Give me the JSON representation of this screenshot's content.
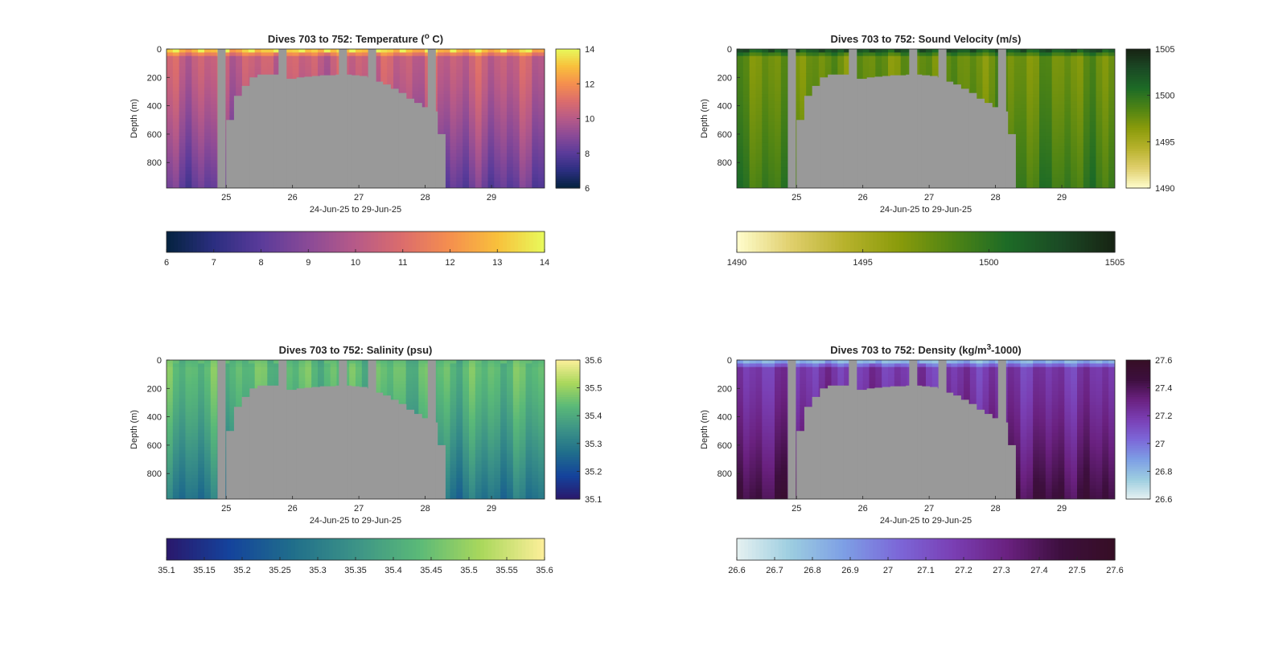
{
  "xlabel": "24-Jun-25 to 29-Jun-25",
  "ylabel": "Depth (m)",
  "x_ticks": [
    "25",
    "26",
    "27",
    "28",
    "29"
  ],
  "y_ticks": [
    "0",
    "200",
    "400",
    "600",
    "800"
  ],
  "chart_data": [
    {
      "type": "heatmap",
      "title": "Dives 703 to 752: Temperature (",
      "title_sup": "o",
      "title_tail": " C)",
      "xlabel": "24-Jun-25 to 29-Jun-25",
      "ylabel": "Depth (m)",
      "x_range": [
        24.1,
        29.8
      ],
      "y_range": [
        0,
        980
      ],
      "y_reversed": true,
      "clim": [
        6,
        14
      ],
      "colormap": "thermal",
      "colorbar_side_ticks": [
        "6",
        "8",
        "10",
        "12",
        "14"
      ],
      "colorbar_bottom_ticks": [
        "6",
        "7",
        "8",
        "9",
        "10",
        "11",
        "12",
        "13",
        "14"
      ],
      "surface_value": 13.5,
      "mid_value": 10.4,
      "deep_value": 8.2
    },
    {
      "type": "heatmap",
      "title": "Dives 703 to 752: Sound Velocity (m/s)",
      "title_sup": "",
      "title_tail": "",
      "xlabel": "24-Jun-25 to 29-Jun-25",
      "ylabel": "Depth (m)",
      "x_range": [
        24.1,
        29.8
      ],
      "y_range": [
        0,
        980
      ],
      "y_reversed": true,
      "clim": [
        1490,
        1505
      ],
      "colormap": "speed",
      "colorbar_side_ticks": [
        "1490",
        "1495",
        "1500",
        "1505"
      ],
      "colorbar_bottom_ticks": [
        "1490",
        "1495",
        "1500",
        "1505"
      ],
      "surface_value": 1502.5,
      "mid_value": 1497.5,
      "deep_value": 1499.5
    },
    {
      "type": "heatmap",
      "title": "Dives 703 to 752: Salinity (psu)",
      "title_sup": "",
      "title_tail": "",
      "xlabel": "24-Jun-25 to 29-Jun-25",
      "ylabel": "Depth (m)",
      "x_range": [
        24.1,
        29.8
      ],
      "y_range": [
        0,
        980
      ],
      "y_reversed": true,
      "clim": [
        35.1,
        35.6
      ],
      "colormap": "haline",
      "colorbar_side_ticks": [
        "35.1",
        "35.2",
        "35.3",
        "35.4",
        "35.5",
        "35.6"
      ],
      "colorbar_bottom_ticks": [
        "35.1",
        "35.15",
        "35.2",
        "35.25",
        "35.3",
        "35.35",
        "35.4",
        "35.45",
        "35.5",
        "35.55",
        "35.6"
      ],
      "surface_value": 35.42,
      "mid_value": 35.44,
      "deep_value": 35.28
    },
    {
      "type": "heatmap",
      "title": "Dives 703 to 752: Density (kg/m",
      "title_sup": "3",
      "title_tail": "-1000)",
      "xlabel": "24-Jun-25 to 29-Jun-25",
      "ylabel": "Depth (m)",
      "x_range": [
        24.1,
        29.8
      ],
      "y_range": [
        0,
        980
      ],
      "y_reversed": true,
      "clim": [
        26.6,
        27.6
      ],
      "colormap": "dense",
      "colorbar_side_ticks": [
        "26.6",
        "26.8",
        "27",
        "27.2",
        "27.4",
        "27.6"
      ],
      "colorbar_bottom_ticks": [
        "26.6",
        "26.7",
        "26.8",
        "26.9",
        "27",
        "27.1",
        "27.2",
        "27.3",
        "27.4",
        "27.5",
        "27.6"
      ],
      "surface_value": 26.75,
      "mid_value": 27.2,
      "deep_value": 27.45
    }
  ],
  "dives": {
    "no_data_color": "#999999",
    "gap_columns_days": [
      24.93,
      25.85,
      26.76,
      27.2,
      28.1
    ],
    "shallow_segment": {
      "x_start_days": 25.0,
      "x_end_days": 28.3,
      "max_depth_m": [
        500,
        330,
        260,
        200,
        180,
        180,
        180,
        210,
        210,
        200,
        195,
        190,
        185,
        185,
        180,
        180,
        185,
        190,
        200,
        230,
        250,
        280,
        310,
        350,
        380,
        410,
        440,
        600
      ]
    }
  }
}
